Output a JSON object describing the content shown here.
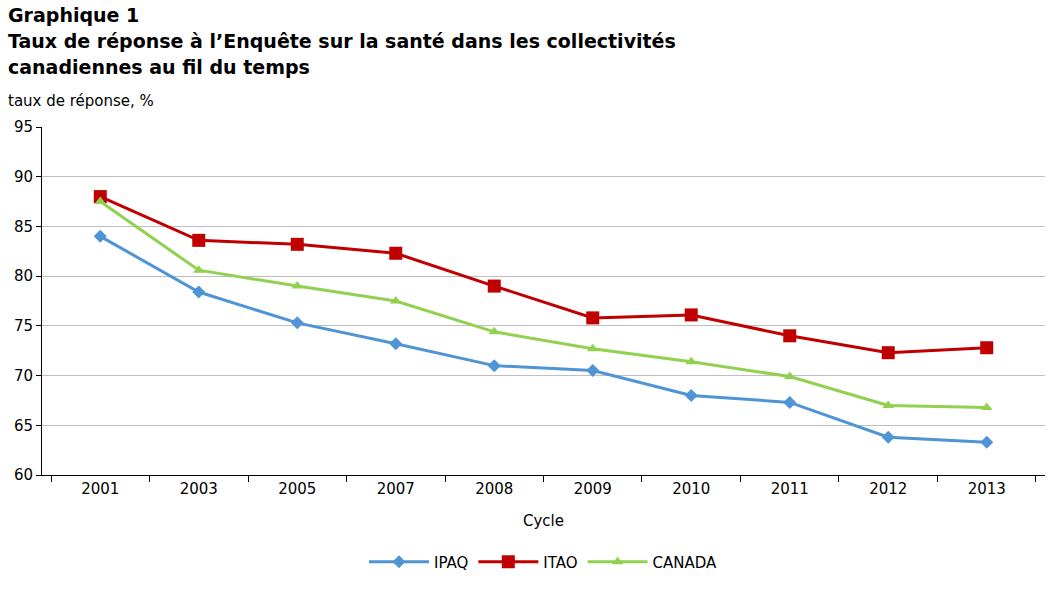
{
  "chart_data": {
    "type": "line",
    "title": "Graphique 1",
    "subtitle": "Taux de réponse à l’Enquête sur la santé dans les collectivités canadiennes au fil du temps",
    "y_label": "taux de réponse, %",
    "x_label": "Cycle",
    "categories": [
      "2001",
      "2003",
      "2005",
      "2007",
      "2008",
      "2009",
      "2010",
      "2011",
      "2012",
      "2013"
    ],
    "series": [
      {
        "name": "IPAQ",
        "color": "#4f94d4",
        "marker": "diamond",
        "values": [
          84.0,
          78.4,
          75.3,
          73.2,
          71.0,
          70.5,
          68.0,
          67.3,
          63.8,
          63.3
        ]
      },
      {
        "name": "ITAO",
        "color": "#c00000",
        "marker": "square",
        "values": [
          88.0,
          83.6,
          83.2,
          82.3,
          79.0,
          75.8,
          76.1,
          74.0,
          72.3,
          72.8
        ]
      },
      {
        "name": "CANADA",
        "color": "#92d050",
        "marker": "triangle-up",
        "values": [
          87.5,
          80.6,
          79.0,
          77.5,
          74.4,
          72.7,
          71.4,
          69.9,
          67.0,
          66.8
        ]
      }
    ],
    "ylim": [
      60,
      95
    ],
    "yticks": [
      60,
      65,
      70,
      75,
      80,
      85,
      90,
      95
    ],
    "grid": true,
    "legend": "bottom"
  }
}
